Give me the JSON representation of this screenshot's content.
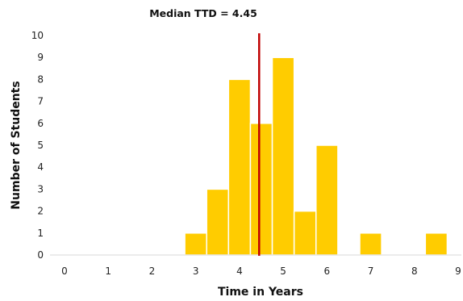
{
  "chart_data": {
    "type": "bar",
    "title": "Median TTD = 4.45",
    "xlabel": "Time in Years",
    "ylabel": "Number of Students",
    "xlim": [
      0,
      9
    ],
    "ylim": [
      0,
      10
    ],
    "x_ticks": [
      0,
      1,
      2,
      3,
      4,
      5,
      6,
      7,
      8,
      9
    ],
    "y_ticks": [
      0,
      1,
      2,
      3,
      4,
      5,
      6,
      7,
      8,
      9,
      10
    ],
    "bin_width": 0.5,
    "bins": [
      {
        "start": 2.75,
        "value": 1
      },
      {
        "start": 3.25,
        "value": 3
      },
      {
        "start": 3.75,
        "value": 8
      },
      {
        "start": 4.25,
        "value": 6
      },
      {
        "start": 4.75,
        "value": 9
      },
      {
        "start": 5.25,
        "value": 2
      },
      {
        "start": 5.75,
        "value": 5
      },
      {
        "start": 6.75,
        "value": 1
      },
      {
        "start": 8.25,
        "value": 1
      }
    ],
    "median": 4.45,
    "bar_color": "#FFCC00",
    "median_line_color": "#C00000",
    "grid": false,
    "legend": "none"
  }
}
